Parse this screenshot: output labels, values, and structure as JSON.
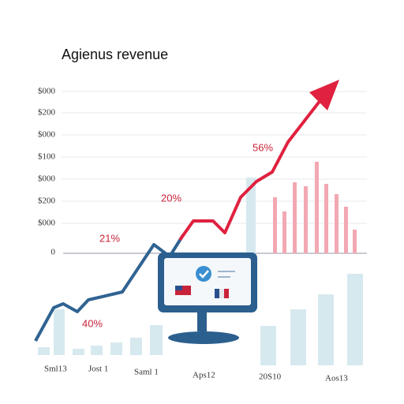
{
  "header": {
    "title": "Agienus revenue"
  },
  "y_labels": [
    "$000",
    "$200",
    "$000",
    "$100",
    "$000",
    "$200",
    "$000",
    "0"
  ],
  "annotations": [
    "56%",
    "20%",
    "21%",
    "40%"
  ],
  "x_labels": [
    "Sml13",
    "Jost 1",
    "Saml 1",
    "Aps12",
    "20S10",
    "Aos13"
  ]
}
